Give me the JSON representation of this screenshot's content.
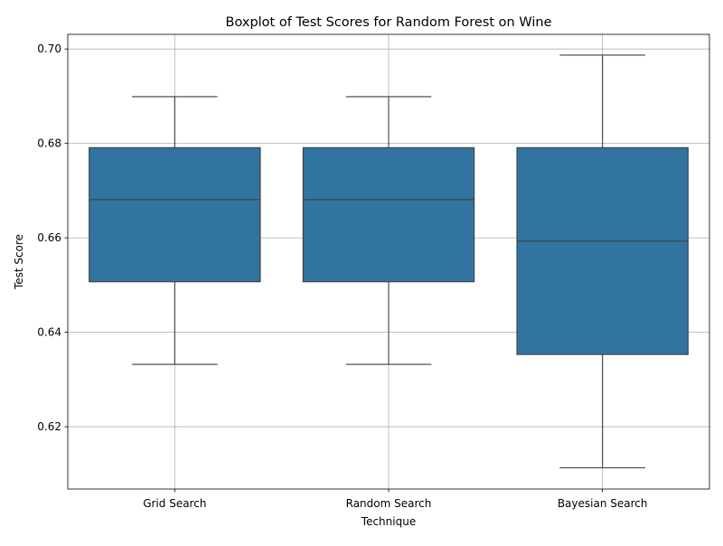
{
  "chart_data": {
    "type": "box",
    "title": "Boxplot of Test Scores for Random Forest on Wine",
    "xlabel": "Technique",
    "ylabel": "Test Score",
    "categories": [
      "Grid Search",
      "Random Search",
      "Bayesian Search"
    ],
    "boxes": [
      {
        "category": "Grid Search",
        "whisker_low": 0.6332,
        "q1": 0.6507,
        "median": 0.6681,
        "q3": 0.6791,
        "whisker_high": 0.6899
      },
      {
        "category": "Random Search",
        "whisker_low": 0.6332,
        "q1": 0.6507,
        "median": 0.6681,
        "q3": 0.6791,
        "whisker_high": 0.6899
      },
      {
        "category": "Bayesian Search",
        "whisker_low": 0.6113,
        "q1": 0.6353,
        "median": 0.6593,
        "q3": 0.6791,
        "whisker_high": 0.6987
      }
    ],
    "ylim": [
      0.6068,
      0.7031
    ],
    "yticks": [
      "0.62",
      "0.64",
      "0.66",
      "0.68",
      "0.70"
    ],
    "grid": true,
    "box_color": "#3274a1",
    "line_color": "#3f3f3f"
  }
}
